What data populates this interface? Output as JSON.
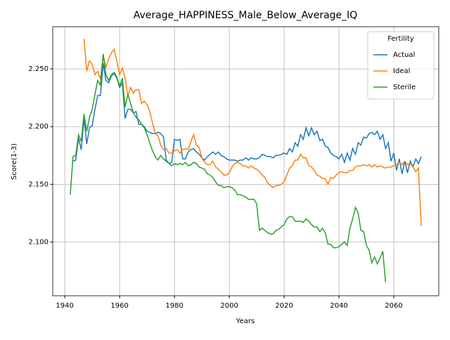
{
  "chart_data": {
    "type": "line",
    "title": "Average_HAPPINESS_Male_Below_Average_IQ",
    "xlabel": "Years",
    "ylabel": "Score(1-3)",
    "legend_title": "Fertility",
    "legend_loc": "upper right",
    "grid": true,
    "xlim": [
      1935.6,
      2076.4
    ],
    "ylim": [
      2.0534,
      2.2866
    ],
    "xticks": [
      1940,
      1960,
      1980,
      2000,
      2020,
      2040,
      2060
    ],
    "yticks": [
      {
        "value": 2.1,
        "label": "2.100"
      },
      {
        "value": 2.15,
        "label": "2.150"
      },
      {
        "value": 2.2,
        "label": "2.200"
      },
      {
        "value": 2.25,
        "label": "2.250"
      }
    ],
    "x": [
      1942,
      1943,
      1944,
      1945,
      1946,
      1947,
      1948,
      1949,
      1950,
      1951,
      1952,
      1953,
      1954,
      1955,
      1956,
      1957,
      1958,
      1959,
      1960,
      1961,
      1962,
      1963,
      1964,
      1965,
      1966,
      1967,
      1968,
      1969,
      1970,
      1971,
      1972,
      1973,
      1974,
      1975,
      1976,
      1977,
      1978,
      1979,
      1980,
      1981,
      1982,
      1983,
      1984,
      1985,
      1986,
      1987,
      1988,
      1989,
      1990,
      1991,
      1992,
      1993,
      1994,
      1995,
      1996,
      1997,
      1998,
      1999,
      2000,
      2001,
      2002,
      2003,
      2004,
      2005,
      2006,
      2007,
      2008,
      2009,
      2010,
      2011,
      2012,
      2013,
      2014,
      2015,
      2016,
      2017,
      2018,
      2019,
      2020,
      2021,
      2022,
      2023,
      2024,
      2025,
      2026,
      2027,
      2028,
      2029,
      2030,
      2031,
      2032,
      2033,
      2034,
      2035,
      2036,
      2037,
      2038,
      2039,
      2040,
      2041,
      2042,
      2043,
      2044,
      2045,
      2046,
      2047,
      2048,
      2049,
      2050,
      2051,
      2052,
      2053,
      2054,
      2055,
      2056,
      2057,
      2058,
      2059,
      2060,
      2061,
      2062,
      2063,
      2064,
      2065,
      2066,
      2067,
      2068,
      2069,
      2070
    ],
    "series": [
      {
        "name": "Actual",
        "color": "#1f77b4",
        "values": [
          null,
          2.17,
          2.171,
          2.19,
          2.18,
          2.207,
          2.185,
          2.199,
          2.201,
          2.215,
          2.227,
          2.227,
          2.255,
          2.24,
          2.238,
          2.244,
          2.246,
          2.242,
          2.234,
          2.238,
          2.207,
          2.215,
          2.215,
          2.212,
          2.213,
          2.202,
          2.202,
          2.2,
          2.196,
          2.195,
          2.194,
          2.194,
          2.195,
          2.194,
          2.191,
          2.171,
          2.168,
          2.169,
          2.189,
          2.188,
          2.189,
          2.172,
          2.172,
          2.178,
          2.18,
          2.181,
          2.178,
          2.176,
          2.173,
          2.171,
          2.174,
          2.176,
          2.178,
          2.176,
          2.178,
          2.175,
          2.174,
          2.172,
          2.171,
          2.171,
          2.171,
          2.17,
          2.171,
          2.171,
          2.173,
          2.171,
          2.173,
          2.172,
          2.172,
          2.173,
          2.176,
          2.175,
          2.174,
          2.174,
          2.173,
          2.175,
          2.175,
          2.176,
          2.177,
          2.176,
          2.181,
          2.178,
          2.186,
          2.183,
          2.193,
          2.189,
          2.199,
          2.192,
          2.199,
          2.193,
          2.196,
          2.188,
          2.189,
          2.183,
          2.182,
          2.177,
          2.175,
          2.174,
          2.172,
          2.176,
          2.169,
          2.177,
          2.171,
          2.181,
          2.176,
          2.186,
          2.184,
          2.191,
          2.19,
          2.194,
          2.195,
          2.193,
          2.196,
          2.189,
          2.193,
          2.181,
          2.186,
          2.17,
          2.177,
          2.162,
          2.172,
          2.159,
          2.17,
          2.16,
          2.17,
          2.165,
          2.172,
          2.168,
          2.174
        ]
      },
      {
        "name": "Ideal",
        "color": "#ff7f0e",
        "values": [
          null,
          null,
          null,
          null,
          null,
          2.276,
          2.248,
          2.257,
          2.254,
          2.245,
          2.248,
          2.241,
          2.262,
          2.251,
          2.259,
          2.264,
          2.267,
          2.257,
          2.245,
          2.251,
          2.242,
          2.226,
          2.234,
          2.229,
          2.232,
          2.232,
          2.22,
          2.222,
          2.219,
          2.213,
          2.203,
          2.194,
          2.192,
          2.184,
          2.18,
          2.181,
          2.177,
          2.177,
          2.179,
          2.18,
          2.177,
          2.18,
          2.181,
          2.18,
          2.187,
          2.193,
          2.184,
          2.182,
          2.173,
          2.169,
          2.167,
          2.167,
          2.17,
          2.165,
          2.163,
          2.161,
          2.158,
          2.158,
          2.16,
          2.165,
          2.168,
          2.169,
          2.168,
          2.166,
          2.166,
          2.164,
          2.166,
          2.164,
          2.163,
          2.161,
          2.158,
          2.156,
          2.151,
          2.149,
          2.147,
          2.149,
          2.149,
          2.15,
          2.152,
          2.158,
          2.164,
          2.166,
          2.171,
          2.171,
          2.176,
          2.173,
          2.173,
          2.166,
          2.165,
          2.162,
          2.158,
          2.157,
          2.155,
          2.155,
          2.15,
          2.156,
          2.155,
          2.158,
          2.16,
          2.161,
          2.16,
          2.16,
          2.162,
          2.162,
          2.165,
          2.166,
          2.166,
          2.167,
          2.166,
          2.167,
          2.165,
          2.167,
          2.165,
          2.166,
          2.165,
          2.164,
          2.165,
          2.165,
          2.166,
          2.167,
          2.169,
          2.167,
          2.17,
          2.167,
          2.168,
          2.165,
          2.161,
          2.164,
          2.114
        ]
      },
      {
        "name": "Sterile",
        "color": "#2ca02c",
        "values": [
          2.141,
          2.174,
          2.175,
          2.193,
          2.187,
          2.211,
          2.196,
          2.208,
          2.215,
          2.228,
          2.24,
          2.236,
          2.263,
          2.245,
          2.24,
          2.245,
          2.247,
          2.243,
          2.235,
          2.242,
          2.217,
          2.228,
          2.22,
          2.212,
          2.208,
          2.206,
          2.202,
          2.199,
          2.193,
          2.186,
          2.179,
          2.174,
          2.171,
          2.175,
          2.172,
          2.17,
          2.168,
          2.166,
          2.168,
          2.167,
          2.168,
          2.167,
          2.169,
          2.166,
          2.167,
          2.169,
          2.168,
          2.165,
          2.164,
          2.163,
          2.159,
          2.158,
          2.156,
          2.152,
          2.149,
          2.149,
          2.147,
          2.148,
          2.148,
          2.147,
          2.145,
          2.141,
          2.141,
          2.14,
          2.139,
          2.137,
          2.137,
          2.137,
          2.133,
          2.11,
          2.112,
          2.11,
          2.108,
          2.107,
          2.107,
          2.11,
          2.111,
          2.113,
          2.115,
          2.12,
          2.122,
          2.122,
          2.118,
          2.118,
          2.118,
          2.117,
          2.12,
          2.118,
          2.115,
          2.113,
          2.113,
          2.109,
          2.112,
          2.108,
          2.098,
          2.098,
          2.095,
          2.095,
          2.096,
          2.098,
          2.1,
          2.097,
          2.112,
          2.12,
          2.13,
          2.125,
          2.11,
          2.109,
          2.097,
          2.093,
          2.082,
          2.087,
          2.081,
          2.086,
          2.092,
          2.065,
          null,
          null,
          null,
          null,
          null,
          null,
          null,
          null,
          null,
          null,
          null,
          null,
          null
        ]
      }
    ]
  }
}
